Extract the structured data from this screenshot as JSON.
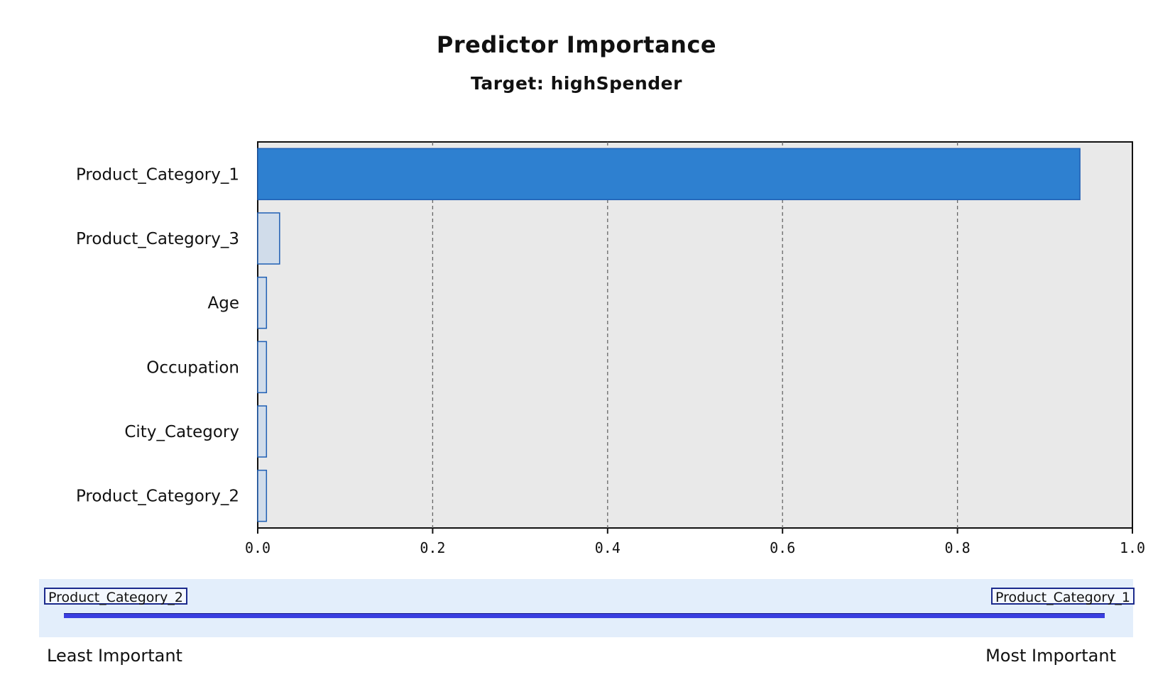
{
  "chart_data": {
    "type": "bar",
    "orientation": "horizontal",
    "title": "Predictor Importance",
    "subtitle": "Target: highSpender",
    "categories": [
      "Product_Category_1",
      "Product_Category_3",
      "Age",
      "Occupation",
      "City_Category",
      "Product_Category_2"
    ],
    "values": [
      0.94,
      0.025,
      0.01,
      0.01,
      0.01,
      0.01
    ],
    "xlim": [
      0.0,
      1.0
    ],
    "x_ticks": [
      "0.0",
      "0.2",
      "0.4",
      "0.6",
      "0.8",
      "1.0"
    ],
    "grid": "vertical dashed",
    "colors": {
      "top_bar": "#2e80d0",
      "other_bars": "#d0dcea",
      "bar_border": "#1f5fb4",
      "plot_background": "#e9e9e9"
    }
  },
  "slider": {
    "min_label": "Product_Category_2",
    "max_label": "Product_Category_1",
    "least_label": "Least Important",
    "most_label": "Most Important",
    "panel_color": "#e3eefb",
    "track_color": "#3a3ee0"
  }
}
